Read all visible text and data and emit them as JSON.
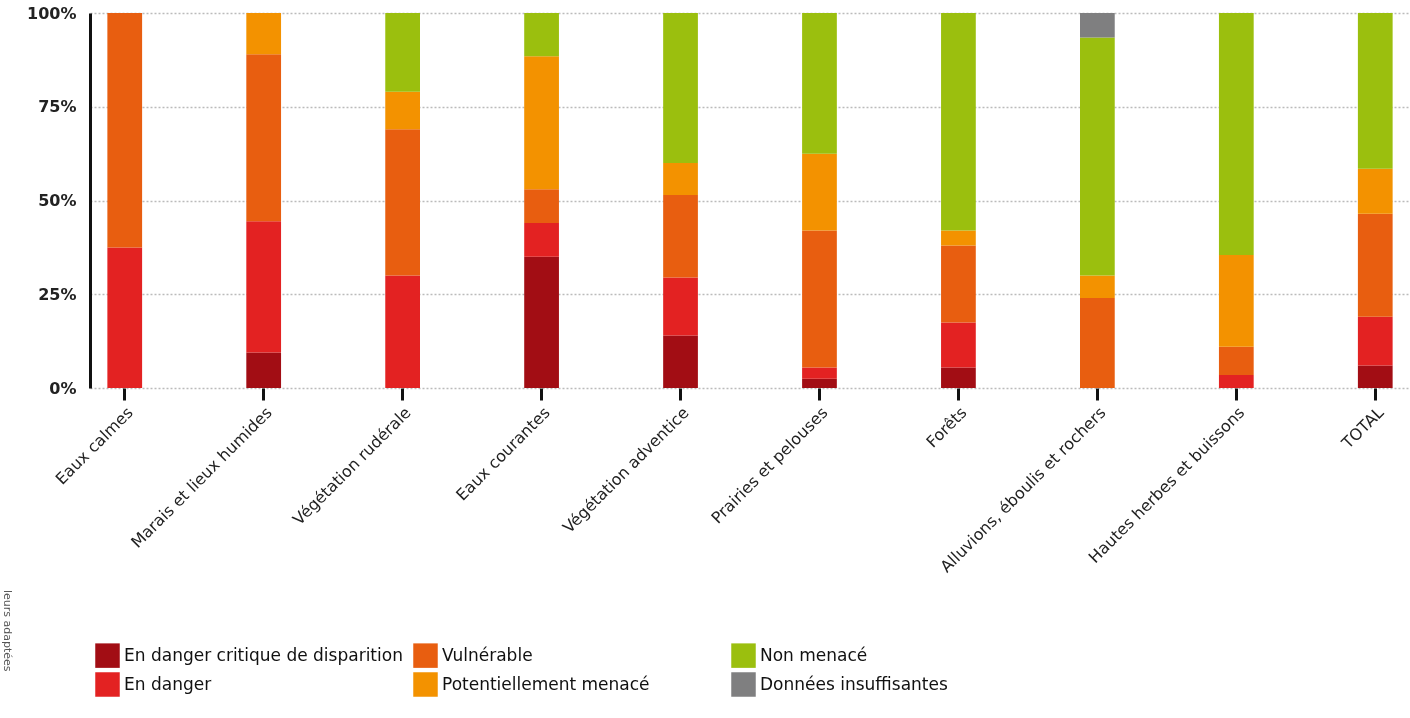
{
  "chart_data": {
    "type": "bar",
    "stacked": true,
    "categories": [
      "Eaux calmes",
      "Marais et lieux humides",
      "Végétation rudérale",
      "Eaux courantes",
      "Végétation adventice",
      "Prairies et pelouses",
      "Forêts",
      "Alluvions, éboulis et rochers",
      "Hautes herbes et buissons",
      "TOTAL"
    ],
    "series": [
      {
        "name": "En danger critique de disparition",
        "color": "#a20d14",
        "values": [
          null,
          9.5,
          null,
          35,
          14,
          2.5,
          5.5,
          null,
          null,
          6
        ]
      },
      {
        "name": "En danger",
        "color": "#e32222",
        "values": [
          37.5,
          35,
          30,
          9,
          15.5,
          3,
          12,
          null,
          3.5,
          13
        ]
      },
      {
        "name": "Vulnérable",
        "color": "#e85e10",
        "values": [
          62.5,
          44.5,
          39,
          9,
          22,
          36.5,
          20.5,
          24,
          7.5,
          27.5
        ]
      },
      {
        "name": "Potentiellement menacé",
        "color": "#f39200",
        "values": [
          null,
          11,
          10,
          35.5,
          8.5,
          20.5,
          4,
          6,
          24.5,
          12
        ]
      },
      {
        "name": "Non menacé",
        "color": "#9bbf0e",
        "values": [
          null,
          null,
          21,
          11.5,
          40,
          37.5,
          58,
          63.5,
          64.5,
          41.5
        ]
      },
      {
        "name": "Données insuffisantes",
        "color": "#7f7f80",
        "values": [
          null,
          null,
          null,
          null,
          null,
          null,
          null,
          6.5,
          null,
          null
        ]
      }
    ],
    "ylim": [
      0,
      100
    ],
    "yticks": [
      {
        "value": 0,
        "label": "0%"
      },
      {
        "value": 25,
        "label": "25%"
      },
      {
        "value": 50,
        "label": "50%"
      },
      {
        "value": 75,
        "label": "75%"
      },
      {
        "value": 100,
        "label": "100%"
      }
    ],
    "grid": "y",
    "legend": "bottom",
    "annotations": [
      "leurs adaptées"
    ]
  }
}
